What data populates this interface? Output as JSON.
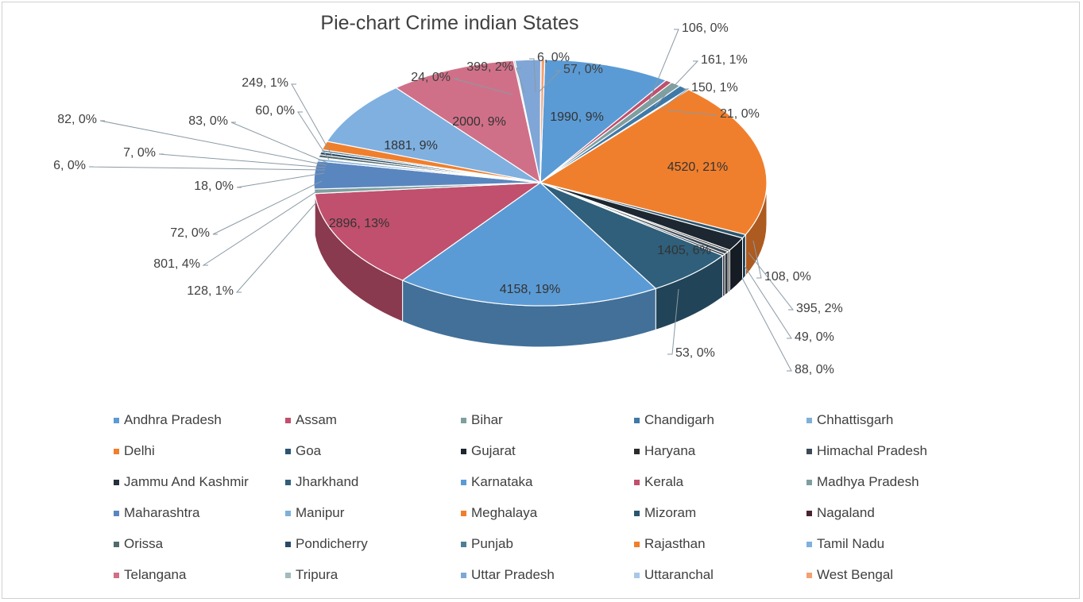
{
  "chart_data": {
    "type": "pie",
    "title": "Pie-chart Crime indian States",
    "legend_position": "bottom",
    "slices": [
      {
        "name": "Andhra Pradesh",
        "value": 1990,
        "label": "1990, 9%",
        "color": "#5b9bd5"
      },
      {
        "name": "Assam",
        "value": 106,
        "label": "106, 0%",
        "color": "#c0506d"
      },
      {
        "name": "Bihar",
        "value": 161,
        "label": "161, 1%",
        "color": "#7f9f9f"
      },
      {
        "name": "Chandigarh",
        "value": 150,
        "label": "150, 1%",
        "color": "#3f79a8"
      },
      {
        "name": "Chhattisgarh",
        "value": 21,
        "label": "21, 0%",
        "color": "#7fb0d8"
      },
      {
        "name": "Delhi",
        "value": 4520,
        "label": "4520, 21%",
        "color": "#f07f2d"
      },
      {
        "name": "Goa",
        "value": 108,
        "label": "108, 0%",
        "color": "#2a5570"
      },
      {
        "name": "Gujarat",
        "value": 395,
        "label": "395, 2%",
        "color": "#1d2731"
      },
      {
        "name": "Haryana",
        "value": 49,
        "label": "49, 0%",
        "color": "#2b2b2b"
      },
      {
        "name": "Himachal Pradesh",
        "value": 88,
        "label": "88, 0%",
        "color": "#3d4a56"
      },
      {
        "name": "Jammu And Kashmir",
        "value": 53,
        "label": "53, 0%",
        "color": "#25313d"
      },
      {
        "name": "Jharkhand",
        "value": 1405,
        "label": "1405, 6%",
        "color": "#2f5f7a"
      },
      {
        "name": "Karnataka",
        "value": 4158,
        "label": "4158, 19%",
        "color": "#5b9bd5"
      },
      {
        "name": "Kerala",
        "value": 2896,
        "label": "2896, 13%",
        "color": "#c0506d"
      },
      {
        "name": "Madhya Pradesh",
        "value": 128,
        "label": "128, 1%",
        "color": "#7f9f9f"
      },
      {
        "name": "Maharashtra",
        "value": 801,
        "label": "801, 4%",
        "color": "#5a86c0"
      },
      {
        "name": "Manipur",
        "value": 72,
        "label": "72, 0%",
        "color": "#7fb0d8"
      },
      {
        "name": "Meghalaya",
        "value": 18,
        "label": "18, 0%",
        "color": "#f07f2d"
      },
      {
        "name": "Mizoram",
        "value": 6,
        "label": "6, 0%",
        "color": "#2a5570"
      },
      {
        "name": "Nagaland",
        "value": 7,
        "label": "7, 0%",
        "color": "#4a2330"
      },
      {
        "name": "Orissa",
        "value": 82,
        "label": "82, 0%",
        "color": "#526b6b"
      },
      {
        "name": "Pondicherry",
        "value": 83,
        "label": "83, 0%",
        "color": "#2a4a66"
      },
      {
        "name": "Punjab",
        "value": 60,
        "label": "60, 0%",
        "color": "#4f7f95"
      },
      {
        "name": "Rajasthan",
        "value": 249,
        "label": "249, 1%",
        "color": "#f07f2d"
      },
      {
        "name": "Tamil Nadu",
        "value": 1881,
        "label": "1881, 9%",
        "color": "#7fb0e0"
      },
      {
        "name": "Telangana",
        "value": 2000,
        "label": "2000, 9%",
        "color": "#d07088"
      },
      {
        "name": "Tripura",
        "value": 24,
        "label": "24, 0%",
        "color": "#a0bcbc"
      },
      {
        "name": "Uttar Pradesh",
        "value": 399,
        "label": "399, 2%",
        "color": "#7fa6d6"
      },
      {
        "name": "Uttaranchal",
        "value": 6,
        "label": "6, 0%",
        "color": "#a8c8e8"
      },
      {
        "name": "West Bengal",
        "value": 57,
        "label": "57, 0%",
        "color": "#f4a070"
      }
    ]
  }
}
